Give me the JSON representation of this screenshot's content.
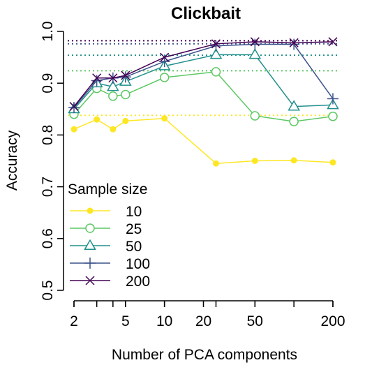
{
  "chart_data": {
    "type": "line",
    "title": "Clickbait",
    "xlabel": "Number of PCA components",
    "ylabel": "Accuracy",
    "x_scale": "log",
    "x": [
      2,
      3,
      4,
      5,
      10,
      25,
      50,
      100,
      200
    ],
    "x_ticks": [
      2,
      5,
      10,
      20,
      50,
      200
    ],
    "x_tick_labels": [
      "2",
      "5",
      "10",
      "20",
      "50",
      "200"
    ],
    "xlim": [
      2,
      200
    ],
    "ylim": [
      0.5,
      1.0
    ],
    "y_ticks": [
      0.5,
      0.6,
      0.7,
      0.8,
      0.9,
      1.0
    ],
    "y_tick_labels": [
      "0.5",
      "0.6",
      "0.7",
      "0.8",
      "0.9",
      "1.0"
    ],
    "grid": false,
    "legend": {
      "title": "Sample size",
      "placement": "bottom-left"
    },
    "series": [
      {
        "name": "10",
        "color": "#FDE725",
        "marker": "filled-circle",
        "values": [
          0.811,
          0.83,
          0.811,
          0.827,
          0.832,
          0.745,
          0.75,
          0.751,
          0.747
        ],
        "reference": 0.838
      },
      {
        "name": "25",
        "color": "#5DC863",
        "marker": "open-circle",
        "values": [
          0.84,
          0.89,
          0.875,
          0.878,
          0.911,
          0.922,
          0.837,
          0.826,
          0.836
        ],
        "reference": 0.924
      },
      {
        "name": "50",
        "color": "#21908C",
        "marker": "open-triangle",
        "values": [
          0.85,
          0.9,
          0.893,
          0.903,
          0.933,
          0.955,
          0.955,
          0.855,
          0.858
        ],
        "reference": 0.954
      },
      {
        "name": "100",
        "color": "#3B528B",
        "marker": "plus",
        "values": [
          0.853,
          0.905,
          0.91,
          0.912,
          0.942,
          0.972,
          0.975,
          0.975,
          0.87
        ],
        "reference": 0.976
      },
      {
        "name": "200",
        "color": "#440154",
        "marker": "cross",
        "values": [
          0.855,
          0.91,
          0.91,
          0.915,
          0.95,
          0.976,
          0.98,
          0.978,
          0.98
        ],
        "reference": 0.982
      }
    ]
  }
}
